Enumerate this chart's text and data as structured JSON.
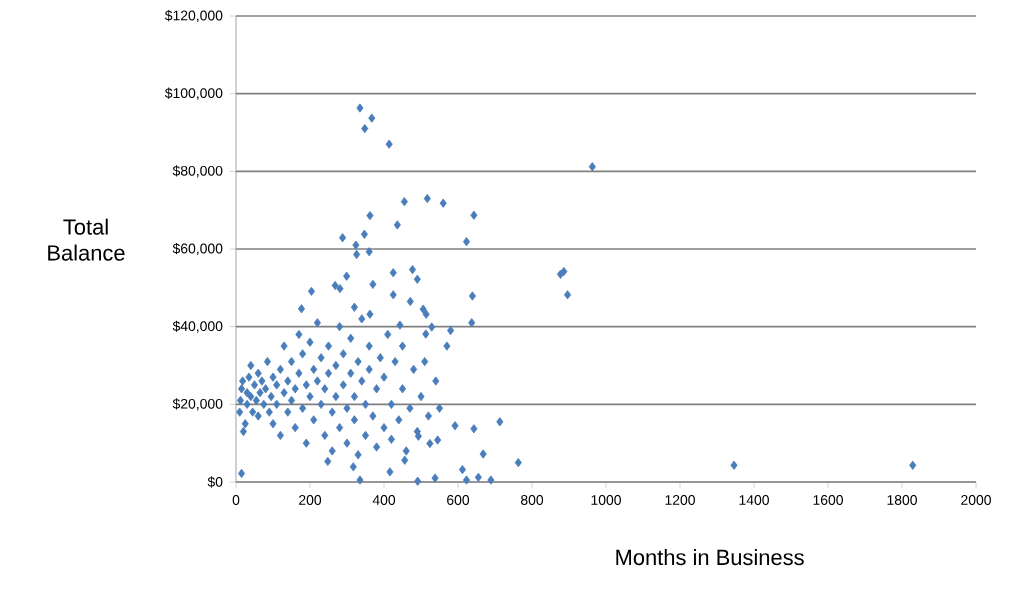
{
  "chart_data": {
    "type": "scatter",
    "xlabel": "Months in Business",
    "ylabel": "Total Balance",
    "xlim": [
      0,
      2000
    ],
    "xticks": [
      0,
      200,
      400,
      600,
      800,
      1000,
      1200,
      1400,
      1600,
      1800,
      2000
    ],
    "ylim": [
      0,
      120000
    ],
    "yticks": [
      {
        "value": 0,
        "label": "$0"
      },
      {
        "value": 20000,
        "label": "$20,000"
      },
      {
        "value": 40000,
        "label": "$40,000"
      },
      {
        "value": 60000,
        "label": "$60,000"
      },
      {
        "value": 80000,
        "label": "$80,000"
      },
      {
        "value": 100000,
        "label": "$100,000"
      },
      {
        "value": 120000,
        "label": "$120,000"
      }
    ],
    "grid": "y",
    "marker": "diamond",
    "series": [
      {
        "color": "#4a7ebb",
        "x": [
          335,
          367,
          348,
          414,
          963,
          455,
          517,
          560,
          643,
          362,
          436,
          288,
          347,
          324,
          326,
          360,
          623,
          877,
          886,
          896,
          1346,
          1829,
          763,
          713,
          643,
          668,
          592,
          580,
          639,
          637,
          529,
          513,
          477,
          490,
          425,
          299,
          204,
          268,
          370,
          281,
          425,
          471,
          506,
          443,
          514,
          177,
          320,
          362,
          15,
          335,
          491,
          538,
          623,
          689,
          416,
          456,
          317,
          248,
          612,
          655,
          524,
          545,
          493,
          10,
          12,
          15,
          18,
          20,
          25,
          30,
          30,
          35,
          40,
          40,
          45,
          50,
          55,
          60,
          60,
          65,
          70,
          75,
          80,
          85,
          90,
          95,
          100,
          100,
          110,
          110,
          120,
          120,
          130,
          130,
          140,
          140,
          150,
          150,
          160,
          160,
          170,
          170,
          180,
          180,
          190,
          190,
          200,
          200,
          210,
          210,
          220,
          220,
          230,
          230,
          240,
          240,
          250,
          250,
          260,
          260,
          270,
          270,
          280,
          280,
          290,
          290,
          300,
          300,
          310,
          310,
          320,
          320,
          330,
          330,
          340,
          340,
          350,
          350,
          360,
          360,
          370,
          380,
          380,
          390,
          400,
          400,
          410,
          420,
          420,
          430,
          440,
          450,
          450,
          460,
          470,
          480,
          490,
          500,
          510,
          520,
          540,
          550,
          570
        ],
        "values": [
          96300,
          93700,
          91000,
          87000,
          81200,
          72200,
          73000,
          71800,
          68700,
          68600,
          66200,
          62900,
          63800,
          61000,
          58600,
          59300,
          61900,
          53500,
          54200,
          48200,
          4300,
          4300,
          5000,
          15500,
          13700,
          7200,
          14500,
          39000,
          47900,
          41000,
          39900,
          38100,
          54700,
          52200,
          53900,
          53000,
          49100,
          50600,
          50900,
          49800,
          48200,
          46500,
          44500,
          40400,
          43200,
          44600,
          45000,
          43200,
          2200,
          500,
          200,
          1000,
          500,
          500,
          2600,
          5600,
          3900,
          5300,
          3200,
          1200,
          9900,
          10800,
          11800,
          18000,
          21000,
          24000,
          26000,
          13000,
          15000,
          20000,
          23000,
          27000,
          22000,
          30000,
          18000,
          25000,
          21000,
          28000,
          17000,
          23000,
          26000,
          20000,
          24000,
          31000,
          18000,
          22000,
          27000,
          15000,
          25000,
          20000,
          29000,
          12000,
          23000,
          35000,
          18000,
          26000,
          31000,
          21000,
          14000,
          24000,
          28000,
          38000,
          19000,
          33000,
          10000,
          25000,
          22000,
          36000,
          29000,
          16000,
          41000,
          26000,
          20000,
          32000,
          12000,
          24000,
          35000,
          28000,
          8000,
          18000,
          30000,
          22000,
          40000,
          14000,
          25000,
          33000,
          19000,
          10000,
          28000,
          37000,
          22000,
          16000,
          7000,
          31000,
          26000,
          42000,
          12000,
          20000,
          35000,
          29000,
          17000,
          24000,
          9000,
          32000,
          14000,
          27000,
          38000,
          20000,
          11000,
          31000,
          16000,
          24000,
          35000,
          8000,
          19000,
          29000,
          13000,
          22000,
          31000,
          17000,
          26000,
          19000,
          35000
        ]
      }
    ]
  }
}
